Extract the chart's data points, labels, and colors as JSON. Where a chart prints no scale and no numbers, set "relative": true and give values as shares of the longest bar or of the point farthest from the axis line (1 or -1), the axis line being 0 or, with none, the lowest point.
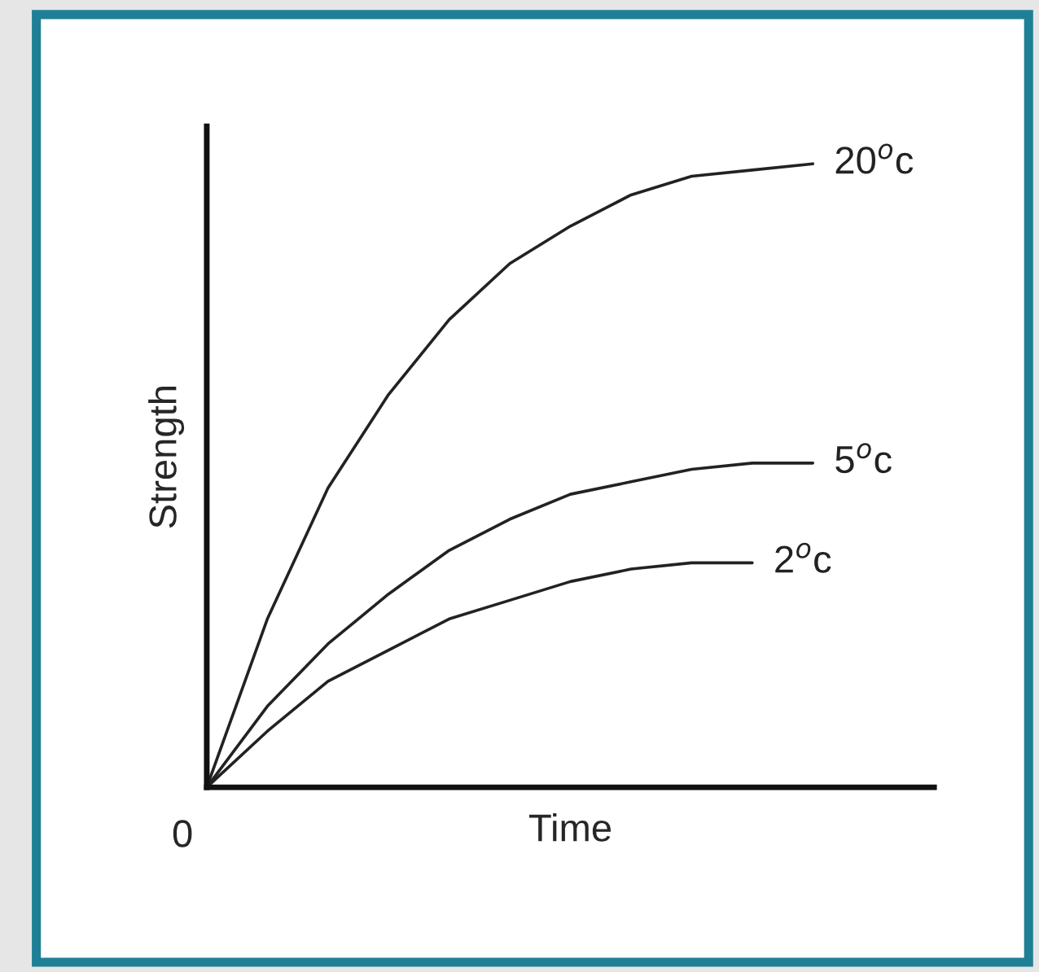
{
  "chart_data": {
    "type": "line",
    "relative": true,
    "xlabel": "Time",
    "ylabel": "Strength",
    "annotations": [
      "0"
    ],
    "categories": [
      null,
      null,
      null,
      null,
      null,
      null,
      null,
      null,
      null,
      null,
      null
    ],
    "series": [
      {
        "name": "20$^{o}$c",
        "color": "#222222",
        "values": [
          0,
          0.27,
          0.48,
          0.63,
          0.75,
          0.84,
          0.9,
          0.95,
          0.98,
          0.99,
          1.0
        ]
      },
      {
        "name": "5$^{o}$c",
        "color": "#222222",
        "values": [
          0,
          0.13,
          0.23,
          0.31,
          0.38,
          0.43,
          0.47,
          0.49,
          0.51,
          0.52,
          0.52
        ]
      },
      {
        "name": "2$^{o}$c",
        "color": "#222222",
        "values": [
          0,
          0.09,
          0.17,
          0.22,
          0.27,
          0.3,
          0.33,
          0.35,
          0.36,
          0.36,
          null
        ]
      }
    ],
    "legend": false,
    "grid": false,
    "marker": "none",
    "line_style": "solid"
  }
}
